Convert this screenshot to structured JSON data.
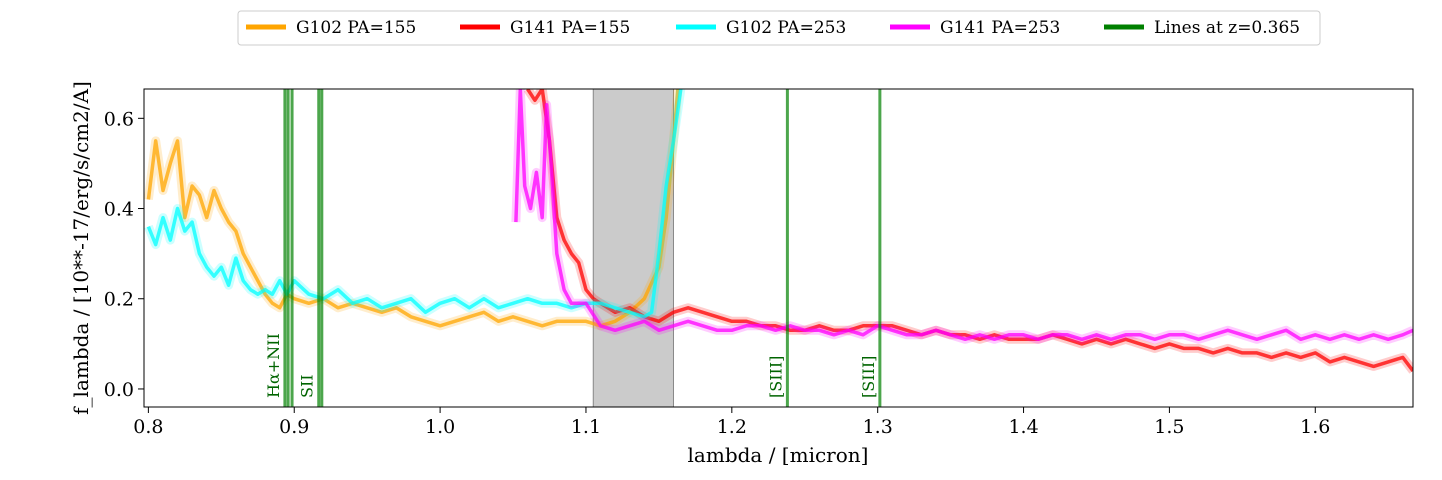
{
  "chart_data": {
    "type": "line",
    "xlabel": "lambda / [micron]",
    "ylabel": "f_lambda / [10**-17/erg/s/cm2/A]",
    "xlim": [
      0.797,
      1.667
    ],
    "ylim": [
      -0.04,
      0.665
    ],
    "x_ticks": [
      0.8,
      0.9,
      1.0,
      1.1,
      1.2,
      1.3,
      1.4,
      1.5,
      1.6
    ],
    "x_tick_labels": [
      "0.8",
      "0.9",
      "1.0",
      "1.1",
      "1.2",
      "1.3",
      "1.4",
      "1.5",
      "1.6"
    ],
    "y_ticks": [
      0.0,
      0.2,
      0.4,
      0.6
    ],
    "y_tick_labels": [
      "0.0",
      "0.2",
      "0.4",
      "0.6"
    ],
    "grid": false,
    "legend_position": "top, outside, centered",
    "legend": [
      {
        "label": "G102 PA=155",
        "color": "#ffa500"
      },
      {
        "label": "G141 PA=155",
        "color": "#ff0000"
      },
      {
        "label": "G102 PA=253",
        "color": "#00ffff"
      },
      {
        "label": "G141 PA=253",
        "color": "#ff00ff"
      },
      {
        "label": "Lines at z=0.365",
        "color": "#008000"
      }
    ],
    "shaded_region": {
      "x0": 1.105,
      "x1": 1.16,
      "color": "#a9a9a9"
    },
    "emission_lines": [
      {
        "label": "Hα+NII",
        "x": [
          0.8936,
          0.8958,
          0.8985
        ]
      },
      {
        "label": "SII",
        "x": [
          0.9168,
          0.9189
        ]
      },
      {
        "label": "[SIII]",
        "x": [
          1.2381
        ]
      },
      {
        "label": "[SIII]",
        "x": [
          1.3015
        ]
      }
    ],
    "series": [
      {
        "name": "G102 PA=155",
        "color": "#ffa500",
        "x": [
          0.8,
          0.805,
          0.81,
          0.815,
          0.82,
          0.825,
          0.83,
          0.835,
          0.84,
          0.845,
          0.85,
          0.855,
          0.86,
          0.865,
          0.87,
          0.875,
          0.88,
          0.885,
          0.89,
          0.895,
          0.9,
          0.91,
          0.92,
          0.93,
          0.94,
          0.95,
          0.96,
          0.97,
          0.98,
          0.99,
          1.0,
          1.01,
          1.02,
          1.03,
          1.04,
          1.05,
          1.06,
          1.07,
          1.08,
          1.09,
          1.1,
          1.11,
          1.12,
          1.13,
          1.14,
          1.15,
          1.155,
          1.16,
          1.163
        ],
        "y": [
          0.42,
          0.55,
          0.44,
          0.5,
          0.55,
          0.38,
          0.45,
          0.43,
          0.38,
          0.44,
          0.4,
          0.37,
          0.35,
          0.3,
          0.27,
          0.24,
          0.21,
          0.19,
          0.18,
          0.21,
          0.2,
          0.19,
          0.2,
          0.18,
          0.19,
          0.18,
          0.17,
          0.18,
          0.16,
          0.15,
          0.14,
          0.15,
          0.16,
          0.17,
          0.15,
          0.16,
          0.15,
          0.14,
          0.15,
          0.15,
          0.15,
          0.14,
          0.15,
          0.17,
          0.2,
          0.27,
          0.38,
          0.55,
          0.665
        ]
      },
      {
        "name": "G141 PA=155",
        "color": "#ff0000",
        "x": [
          1.06,
          1.065,
          1.07,
          1.075,
          1.08,
          1.085,
          1.09,
          1.095,
          1.1,
          1.105,
          1.11,
          1.12,
          1.13,
          1.14,
          1.15,
          1.16,
          1.17,
          1.18,
          1.19,
          1.2,
          1.21,
          1.22,
          1.23,
          1.24,
          1.25,
          1.26,
          1.27,
          1.28,
          1.29,
          1.3,
          1.31,
          1.32,
          1.33,
          1.34,
          1.35,
          1.36,
          1.37,
          1.38,
          1.39,
          1.4,
          1.41,
          1.42,
          1.43,
          1.44,
          1.45,
          1.46,
          1.47,
          1.48,
          1.49,
          1.5,
          1.51,
          1.52,
          1.53,
          1.54,
          1.55,
          1.56,
          1.57,
          1.58,
          1.59,
          1.6,
          1.61,
          1.62,
          1.63,
          1.64,
          1.65,
          1.66,
          1.667
        ],
        "y": [
          0.665,
          0.64,
          0.665,
          0.55,
          0.38,
          0.33,
          0.3,
          0.28,
          0.22,
          0.2,
          0.19,
          0.17,
          0.18,
          0.16,
          0.15,
          0.17,
          0.18,
          0.17,
          0.16,
          0.15,
          0.15,
          0.14,
          0.14,
          0.13,
          0.13,
          0.14,
          0.13,
          0.13,
          0.14,
          0.14,
          0.14,
          0.13,
          0.12,
          0.13,
          0.12,
          0.12,
          0.11,
          0.12,
          0.11,
          0.11,
          0.11,
          0.12,
          0.11,
          0.1,
          0.11,
          0.1,
          0.11,
          0.1,
          0.09,
          0.1,
          0.09,
          0.09,
          0.08,
          0.09,
          0.08,
          0.08,
          0.07,
          0.08,
          0.07,
          0.08,
          0.06,
          0.07,
          0.06,
          0.05,
          0.06,
          0.07,
          0.04
        ]
      },
      {
        "name": "G102 PA=253",
        "color": "#00ffff",
        "x": [
          0.8,
          0.805,
          0.81,
          0.815,
          0.82,
          0.825,
          0.83,
          0.835,
          0.84,
          0.845,
          0.85,
          0.855,
          0.86,
          0.865,
          0.87,
          0.875,
          0.88,
          0.885,
          0.89,
          0.895,
          0.9,
          0.91,
          0.92,
          0.93,
          0.94,
          0.95,
          0.96,
          0.97,
          0.98,
          0.99,
          1.0,
          1.01,
          1.02,
          1.03,
          1.04,
          1.05,
          1.06,
          1.07,
          1.08,
          1.09,
          1.1,
          1.11,
          1.12,
          1.13,
          1.14,
          1.145,
          1.15,
          1.155,
          1.16,
          1.165
        ],
        "y": [
          0.36,
          0.32,
          0.38,
          0.33,
          0.4,
          0.35,
          0.37,
          0.3,
          0.27,
          0.25,
          0.27,
          0.23,
          0.29,
          0.24,
          0.22,
          0.21,
          0.22,
          0.21,
          0.24,
          0.21,
          0.24,
          0.21,
          0.2,
          0.22,
          0.19,
          0.2,
          0.18,
          0.19,
          0.2,
          0.17,
          0.19,
          0.2,
          0.18,
          0.2,
          0.18,
          0.19,
          0.2,
          0.19,
          0.19,
          0.18,
          0.19,
          0.19,
          0.18,
          0.17,
          0.16,
          0.17,
          0.3,
          0.45,
          0.55,
          0.665
        ]
      },
      {
        "name": "G141 PA=253",
        "color": "#ff00ff",
        "x": [
          1.052,
          1.055,
          1.058,
          1.062,
          1.066,
          1.07,
          1.073,
          1.076,
          1.08,
          1.085,
          1.09,
          1.1,
          1.11,
          1.12,
          1.13,
          1.14,
          1.15,
          1.16,
          1.17,
          1.18,
          1.19,
          1.2,
          1.21,
          1.22,
          1.23,
          1.24,
          1.25,
          1.26,
          1.27,
          1.28,
          1.29,
          1.3,
          1.31,
          1.32,
          1.33,
          1.34,
          1.35,
          1.36,
          1.37,
          1.38,
          1.39,
          1.4,
          1.41,
          1.42,
          1.43,
          1.44,
          1.45,
          1.46,
          1.47,
          1.48,
          1.49,
          1.5,
          1.51,
          1.52,
          1.53,
          1.54,
          1.55,
          1.56,
          1.57,
          1.58,
          1.59,
          1.6,
          1.61,
          1.62,
          1.63,
          1.64,
          1.65,
          1.66,
          1.667
        ],
        "y": [
          0.37,
          0.665,
          0.45,
          0.4,
          0.48,
          0.38,
          0.63,
          0.5,
          0.3,
          0.22,
          0.19,
          0.19,
          0.14,
          0.13,
          0.14,
          0.15,
          0.13,
          0.14,
          0.15,
          0.14,
          0.13,
          0.13,
          0.14,
          0.14,
          0.13,
          0.14,
          0.13,
          0.13,
          0.12,
          0.13,
          0.12,
          0.14,
          0.13,
          0.12,
          0.12,
          0.13,
          0.12,
          0.11,
          0.12,
          0.11,
          0.12,
          0.12,
          0.11,
          0.12,
          0.12,
          0.11,
          0.12,
          0.11,
          0.12,
          0.12,
          0.11,
          0.12,
          0.12,
          0.11,
          0.12,
          0.13,
          0.12,
          0.11,
          0.12,
          0.13,
          0.11,
          0.12,
          0.11,
          0.12,
          0.11,
          0.12,
          0.11,
          0.12,
          0.13
        ]
      }
    ]
  }
}
